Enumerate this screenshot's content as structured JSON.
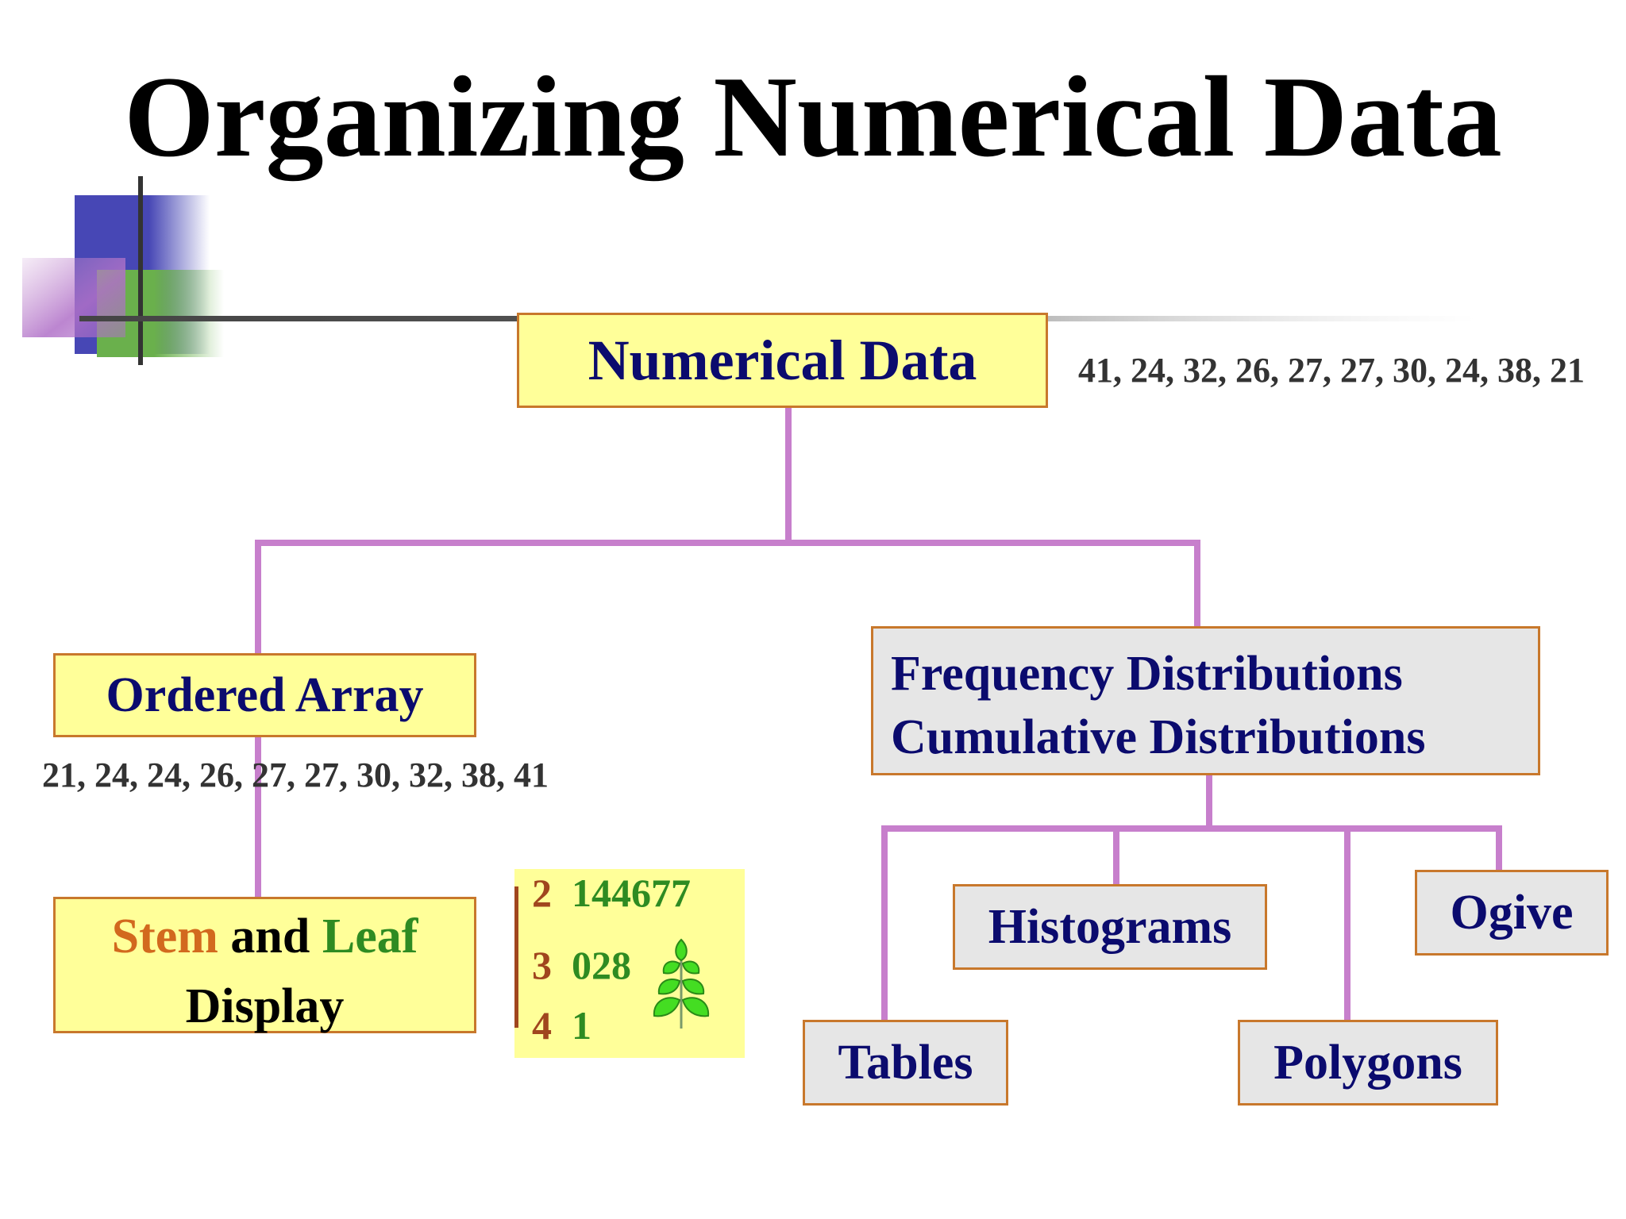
{
  "title": "Organizing Numerical Data",
  "root": {
    "label": "Numerical Data",
    "raw_values": "41, 24, 32, 26, 27, 27, 30, 24, 38, 21"
  },
  "ordered_array": {
    "label": "Ordered Array",
    "sorted_values": "21, 24, 24, 26, 27, 27, 30, 32, 38, 41"
  },
  "stem_leaf": {
    "word_stem": "Stem",
    "word_and": " and ",
    "word_leaf": "Leaf",
    "line2": "Display",
    "rows": [
      {
        "stem": "2",
        "leaves": "144677"
      },
      {
        "stem": "3",
        "leaves": "028"
      },
      {
        "stem": "4",
        "leaves": "1"
      }
    ]
  },
  "distributions": {
    "line1": "Frequency Distributions",
    "line2": "Cumulative Distributions"
  },
  "charts": {
    "tables": "Tables",
    "histograms": "Histograms",
    "polygons": "Polygons",
    "ogive": "Ogive"
  },
  "colors": {
    "connector": "#c77fcc",
    "box_border": "#c8782c",
    "yellow_fill": "#ffff99",
    "gray_fill": "#e6e6e6",
    "navy_text": "#0b0b6e",
    "stem_orange": "#d2691e",
    "leaf_green": "#2e8b22"
  },
  "icons": {
    "decoration": "overlapping-squares-crosshair-icon",
    "plant": "leafy-plant-icon"
  }
}
